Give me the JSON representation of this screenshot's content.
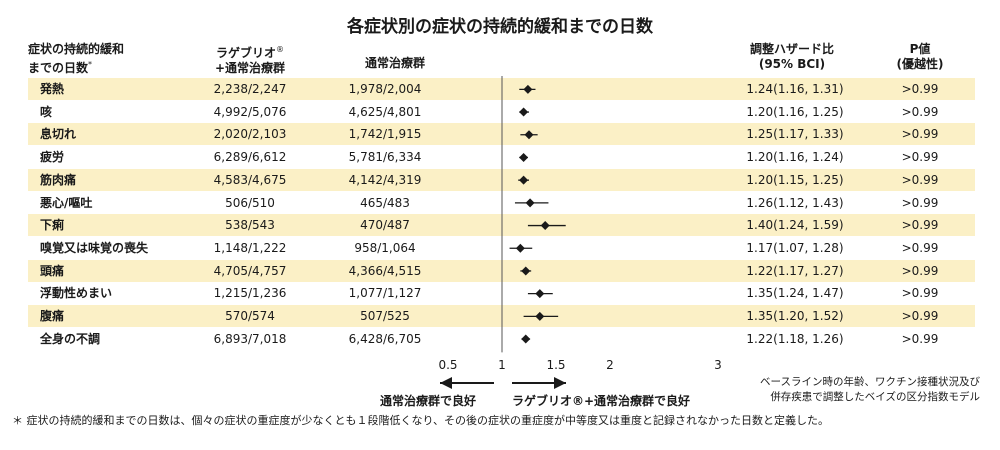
{
  "chart_data": {
    "type": "forest",
    "title": "各症状別の症状の持続的緩和までの日数",
    "columns": {
      "symptom": "症状の持続的緩和までの日数*",
      "arm1": "ラゲブリオ®+通常治療群",
      "arm2": "通常治療群",
      "hr": "調整ハザード比 (95% BCI)",
      "p": "P値 (優越性)"
    },
    "x_ticks": [
      "0.5",
      "1",
      "1.5",
      "2",
      "3"
    ],
    "x_tick_values": [
      0.5,
      1,
      1.5,
      2,
      3
    ],
    "reference_line": 1,
    "rows": [
      {
        "symptom": "発熱",
        "arm1": "2,238/2,247",
        "arm2": "1,978/2,004",
        "hr": 1.24,
        "lo": 1.16,
        "hi": 1.31,
        "hr_text": "1.24(1.16, 1.31)",
        "p": ">0.99"
      },
      {
        "symptom": "咳",
        "arm1": "4,992/5,076",
        "arm2": "4,625/4,801",
        "hr": 1.2,
        "lo": 1.16,
        "hi": 1.25,
        "hr_text": "1.20(1.16, 1.25)",
        "p": ">0.99"
      },
      {
        "symptom": "息切れ",
        "arm1": "2,020/2,103",
        "arm2": "1,742/1,915",
        "hr": 1.25,
        "lo": 1.17,
        "hi": 1.33,
        "hr_text": "1.25(1.17, 1.33)",
        "p": ">0.99"
      },
      {
        "symptom": "疲労",
        "arm1": "6,289/6,612",
        "arm2": "5,781/6,334",
        "hr": 1.2,
        "lo": 1.16,
        "hi": 1.24,
        "hr_text": "1.20(1.16, 1.24)",
        "p": ">0.99"
      },
      {
        "symptom": "筋肉痛",
        "arm1": "4,583/4,675",
        "arm2": "4,142/4,319",
        "hr": 1.2,
        "lo": 1.15,
        "hi": 1.25,
        "hr_text": "1.20(1.15, 1.25)",
        "p": ">0.99"
      },
      {
        "symptom": "悪心/嘔吐",
        "arm1": "506/510",
        "arm2": "465/483",
        "hr": 1.26,
        "lo": 1.12,
        "hi": 1.43,
        "hr_text": "1.26(1.12, 1.43)",
        "p": ">0.99"
      },
      {
        "symptom": "下痢",
        "arm1": "538/543",
        "arm2": "470/487",
        "hr": 1.4,
        "lo": 1.24,
        "hi": 1.59,
        "hr_text": "1.40(1.24, 1.59)",
        "p": ">0.99"
      },
      {
        "symptom": "嗅覚又は味覚の喪失",
        "arm1": "1,148/1,222",
        "arm2": "958/1,064",
        "hr": 1.17,
        "lo": 1.07,
        "hi": 1.28,
        "hr_text": "1.17(1.07, 1.28)",
        "p": ">0.99"
      },
      {
        "symptom": "頭痛",
        "arm1": "4,705/4,757",
        "arm2": "4,366/4,515",
        "hr": 1.22,
        "lo": 1.17,
        "hi": 1.27,
        "hr_text": "1.22(1.17, 1.27)",
        "p": ">0.99"
      },
      {
        "symptom": "浮動性めまい",
        "arm1": "1,215/1,236",
        "arm2": "1,077/1,127",
        "hr": 1.35,
        "lo": 1.24,
        "hi": 1.47,
        "hr_text": "1.35(1.24, 1.47)",
        "p": ">0.99"
      },
      {
        "symptom": "腹痛",
        "arm1": "570/574",
        "arm2": "507/525",
        "hr": 1.35,
        "lo": 1.2,
        "hi": 1.52,
        "hr_text": "1.35(1.20, 1.52)",
        "p": ">0.99"
      },
      {
        "symptom": "全身の不調",
        "arm1": "6,893/7,018",
        "arm2": "6,428/6,705",
        "hr": 1.22,
        "lo": 1.18,
        "hi": 1.26,
        "hr_text": "1.22(1.18, 1.26)",
        "p": ">0.99"
      }
    ],
    "arrow_left_label": "通常治療群で良好",
    "arrow_right_label": "ラゲブリオ®+通常治療群で良好",
    "note": [
      "ベースライン時の年齢、ワクチン接種状況及び",
      "併存疾患で調整したベイズの区分指数モデル"
    ],
    "footnote": "＊ 症状の持続的緩和までの日数は、個々の症状の重症度が少なくとも１段階低くなり、その後の症状の重症度が中等度又は重度と記録されなかった日数と定義した。",
    "colors": {
      "band": "#fbf0c6",
      "marker": "#1a1a1a",
      "line": "#555555"
    }
  }
}
